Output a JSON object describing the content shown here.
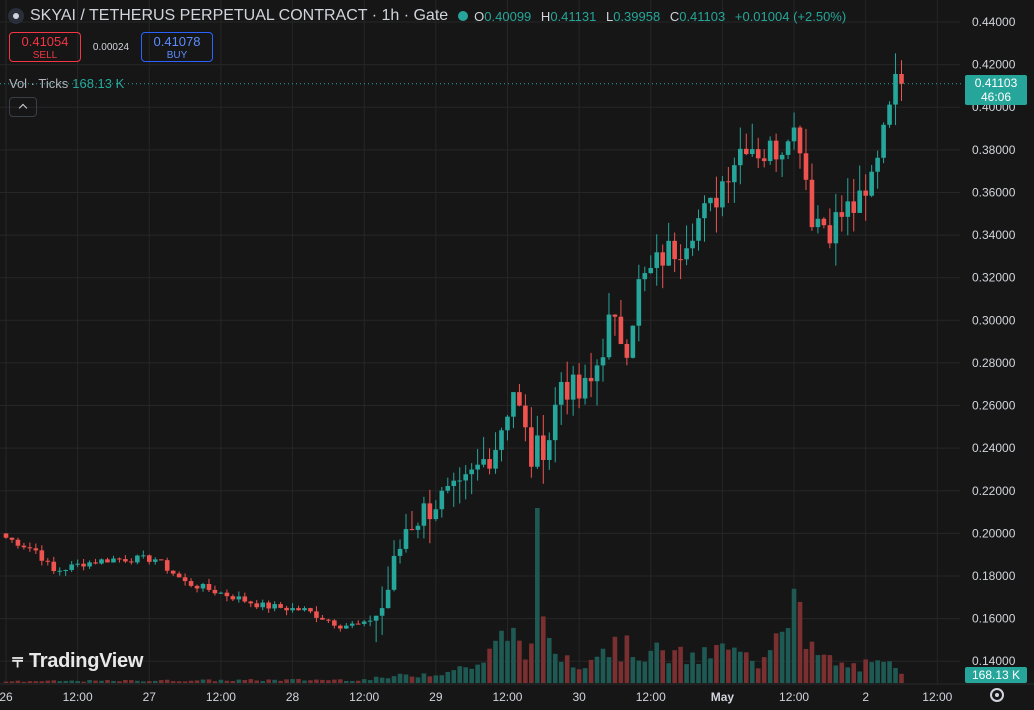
{
  "header": {
    "symbol": "SKYAI / TETHERUS PERPETUAL CONTRACT · 1h · Gate",
    "o_label": "O",
    "o_value": "0.40099",
    "h_label": "H",
    "h_value": "0.41131",
    "l_label": "L",
    "l_value": "0.39958",
    "c_label": "C",
    "c_value": "0.41103",
    "change": "+0.01004 (+2.50%)"
  },
  "trade": {
    "sell_price": "0.41054",
    "sell_label": "SELL",
    "spread": "0.00024",
    "buy_price": "0.41078",
    "buy_label": "BUY"
  },
  "volume_legend": {
    "label": "Vol · Ticks",
    "value": "168.13 K"
  },
  "price_tag": {
    "price": "0.41103",
    "countdown": "46:06"
  },
  "volume_tag": "168.13 K",
  "logo": {
    "text": "TradingView"
  },
  "colors": {
    "up": "#26a69a",
    "down": "#ef5350",
    "up_vol": "#1e5a53",
    "down_vol": "#7a2f31",
    "grid": "#262626",
    "text": "#d1d4dc"
  },
  "chart_data": {
    "type": "candlestick",
    "price_axis_ticks": [
      "0.44000",
      "0.42000",
      "0.40000",
      "0.38000",
      "0.36000",
      "0.34000",
      "0.32000",
      "0.30000",
      "0.28000",
      "0.26000",
      "0.24000",
      "0.22000",
      "0.20000",
      "0.18000",
      "0.16000",
      "0.14000"
    ],
    "price_axis_values": [
      0.44,
      0.42,
      0.4,
      0.38,
      0.36,
      0.34,
      0.32,
      0.3,
      0.28,
      0.26,
      0.24,
      0.22,
      0.2,
      0.18,
      0.16,
      0.14
    ],
    "time_axis_labels": [
      "26",
      "12:00",
      "27",
      "12:00",
      "28",
      "12:00",
      "29",
      "12:00",
      "30",
      "12:00",
      "May",
      "12:00",
      "2",
      "12:00"
    ],
    "time_axis_index": [
      0,
      12,
      24,
      36,
      48,
      60,
      72,
      84,
      96,
      108,
      120,
      132,
      144,
      156
    ],
    "last_price": 0.41103,
    "anchors": [
      [
        0,
        0.198
      ],
      [
        5,
        0.192
      ],
      [
        8,
        0.182
      ],
      [
        13,
        0.186
      ],
      [
        18,
        0.188
      ],
      [
        25,
        0.188
      ],
      [
        30,
        0.177
      ],
      [
        36,
        0.172
      ],
      [
        43,
        0.166
      ],
      [
        50,
        0.164
      ],
      [
        56,
        0.157
      ],
      [
        60,
        0.157
      ],
      [
        63,
        0.165
      ],
      [
        67,
        0.203
      ],
      [
        72,
        0.215
      ],
      [
        76,
        0.218
      ],
      [
        82,
        0.242
      ],
      [
        85,
        0.268
      ],
      [
        88,
        0.235
      ],
      [
        91,
        0.246
      ],
      [
        93,
        0.272
      ],
      [
        96,
        0.264
      ],
      [
        98,
        0.27
      ],
      [
        101,
        0.298
      ],
      [
        104,
        0.29
      ],
      [
        106,
        0.316
      ],
      [
        108,
        0.322
      ],
      [
        110,
        0.33
      ],
      [
        113,
        0.336
      ],
      [
        115,
        0.345
      ],
      [
        118,
        0.352
      ],
      [
        121,
        0.372
      ],
      [
        124,
        0.385
      ],
      [
        127,
        0.378
      ],
      [
        130,
        0.383
      ],
      [
        131,
        0.392
      ],
      [
        133,
        0.385
      ],
      [
        135,
        0.35
      ],
      [
        138,
        0.344
      ],
      [
        141,
        0.352
      ],
      [
        144,
        0.355
      ],
      [
        146,
        0.38
      ],
      [
        148,
        0.408
      ],
      [
        150,
        0.411
      ]
    ],
    "volume_anchors": [
      [
        0,
        0.01
      ],
      [
        60,
        0.02
      ],
      [
        66,
        0.04
      ],
      [
        74,
        0.07
      ],
      [
        80,
        0.12
      ],
      [
        84,
        0.3
      ],
      [
        88,
        0.2
      ],
      [
        89,
        0.8
      ],
      [
        91,
        0.2
      ],
      [
        96,
        0.12
      ],
      [
        100,
        0.22
      ],
      [
        108,
        0.18
      ],
      [
        116,
        0.14
      ],
      [
        120,
        0.2
      ],
      [
        126,
        0.12
      ],
      [
        132,
        0.55
      ],
      [
        134,
        0.2
      ],
      [
        140,
        0.1
      ],
      [
        148,
        0.1
      ],
      [
        150,
        0.08
      ]
    ]
  }
}
